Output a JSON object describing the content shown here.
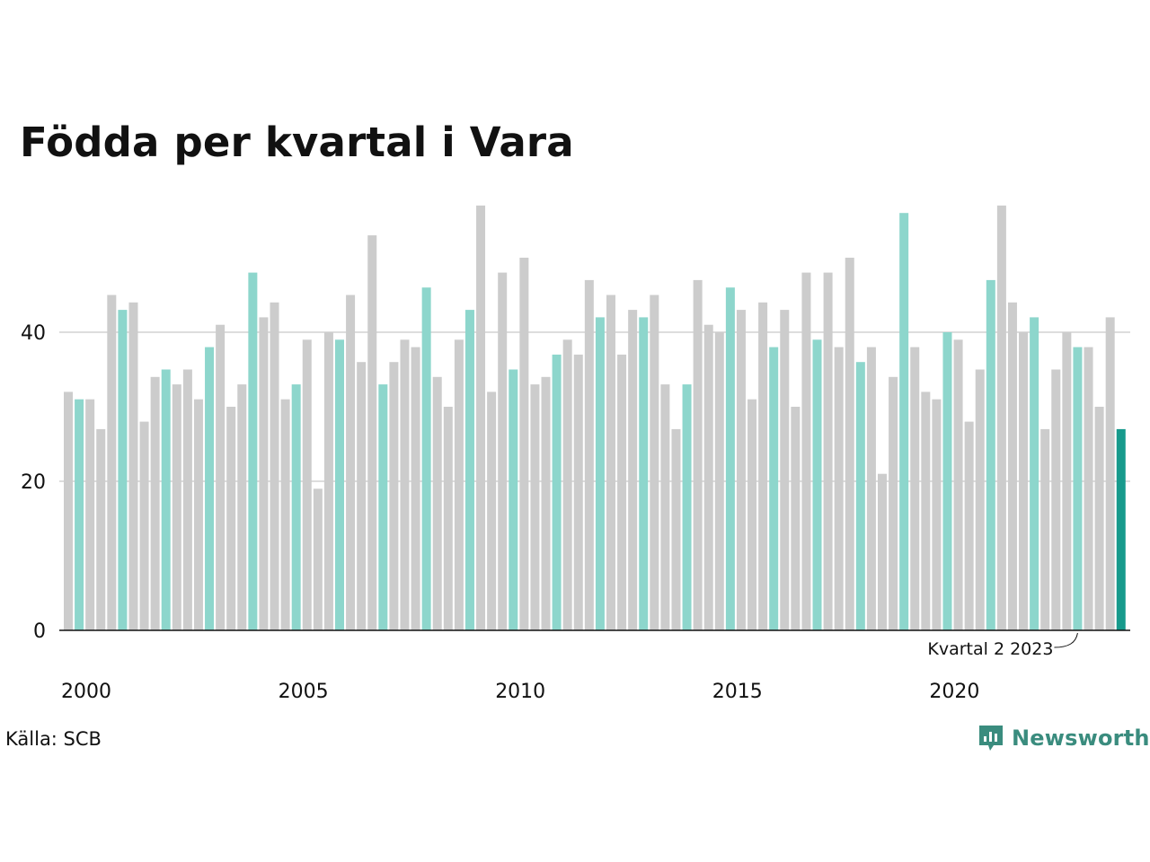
{
  "chart_data": {
    "type": "bar",
    "title": "Födda per kvartal i Vara",
    "xlabel": "",
    "ylabel": "",
    "x_tick_labels": [
      "2000",
      "2005",
      "2010",
      "2015",
      "2020"
    ],
    "y_ticks": [
      0,
      20,
      40
    ],
    "ylim": [
      0,
      57
    ],
    "grid": true,
    "start_year": 2000,
    "categories": [
      "2000 K1",
      "2000 K2",
      "2000 K3",
      "2000 K4",
      "2001 K1",
      "2001 K2",
      "2001 K3",
      "2001 K4",
      "2002 K1",
      "2002 K2",
      "2002 K3",
      "2002 K4",
      "2003 K1",
      "2003 K2",
      "2003 K3",
      "2003 K4",
      "2004 K1",
      "2004 K2",
      "2004 K3",
      "2004 K4",
      "2005 K1",
      "2005 K2",
      "2005 K3",
      "2005 K4",
      "2006 K1",
      "2006 K2",
      "2006 K3",
      "2006 K4",
      "2007 K1",
      "2007 K2",
      "2007 K3",
      "2007 K4",
      "2008 K1",
      "2008 K2",
      "2008 K3",
      "2008 K4",
      "2009 K1",
      "2009 K2",
      "2009 K3",
      "2009 K4",
      "2010 K1",
      "2010 K2",
      "2010 K3",
      "2010 K4",
      "2011 K1",
      "2011 K2",
      "2011 K3",
      "2011 K4",
      "2012 K1",
      "2012 K2",
      "2012 K3",
      "2012 K4",
      "2013 K1",
      "2013 K2",
      "2013 K3",
      "2013 K4",
      "2014 K1",
      "2014 K2",
      "2014 K3",
      "2014 K4",
      "2015 K1",
      "2015 K2",
      "2015 K3",
      "2015 K4",
      "2016 K1",
      "2016 K2",
      "2016 K3",
      "2016 K4",
      "2017 K1",
      "2017 K2",
      "2017 K3",
      "2017 K4",
      "2018 K1",
      "2018 K2",
      "2018 K3",
      "2018 K4",
      "2019 K1",
      "2019 K2",
      "2019 K3",
      "2019 K4",
      "2020 K1",
      "2020 K2",
      "2020 K3",
      "2020 K4",
      "2021 K1",
      "2021 K2",
      "2021 K3",
      "2021 K4",
      "2022 K1",
      "2022 K2",
      "2022 K3",
      "2022 K4",
      "2023 K1",
      "2023 K2",
      "2023 K3",
      "2023 K4",
      "2024 K1",
      "2024 K2"
    ],
    "values": [
      32,
      31,
      31,
      27,
      45,
      43,
      44,
      28,
      34,
      35,
      33,
      35,
      31,
      38,
      41,
      30,
      33,
      48,
      42,
      44,
      31,
      33,
      39,
      19,
      40,
      39,
      45,
      36,
      53,
      33,
      36,
      39,
      38,
      46,
      34,
      30,
      39,
      43,
      57,
      32,
      48,
      35,
      50,
      33,
      34,
      37,
      39,
      37,
      47,
      42,
      45,
      37,
      43,
      42,
      45,
      33,
      27,
      33,
      47,
      41,
      40,
      46,
      43,
      31,
      44,
      38,
      43,
      30,
      48,
      39,
      48,
      38,
      50,
      36,
      38,
      21,
      34,
      56,
      38,
      32,
      31,
      40,
      39,
      28,
      35,
      47,
      57,
      44,
      40,
      42,
      27,
      35,
      40,
      38,
      38,
      30,
      42,
      27
    ],
    "highlight_quarter": 2,
    "highlight_index": 93,
    "colors": {
      "bar": "#cccccc",
      "highlight_quarter_bar": "#8dd6cc",
      "latest_bar": "#179a8c",
      "grid": "#dddddd",
      "axis": "#111111"
    },
    "annotation": "Kvartal 2 2023"
  },
  "footer": {
    "source": "Källa: SCB",
    "brand": "Newsworthy",
    "brand_icon": "bar-chart-speech-bubble-icon"
  }
}
